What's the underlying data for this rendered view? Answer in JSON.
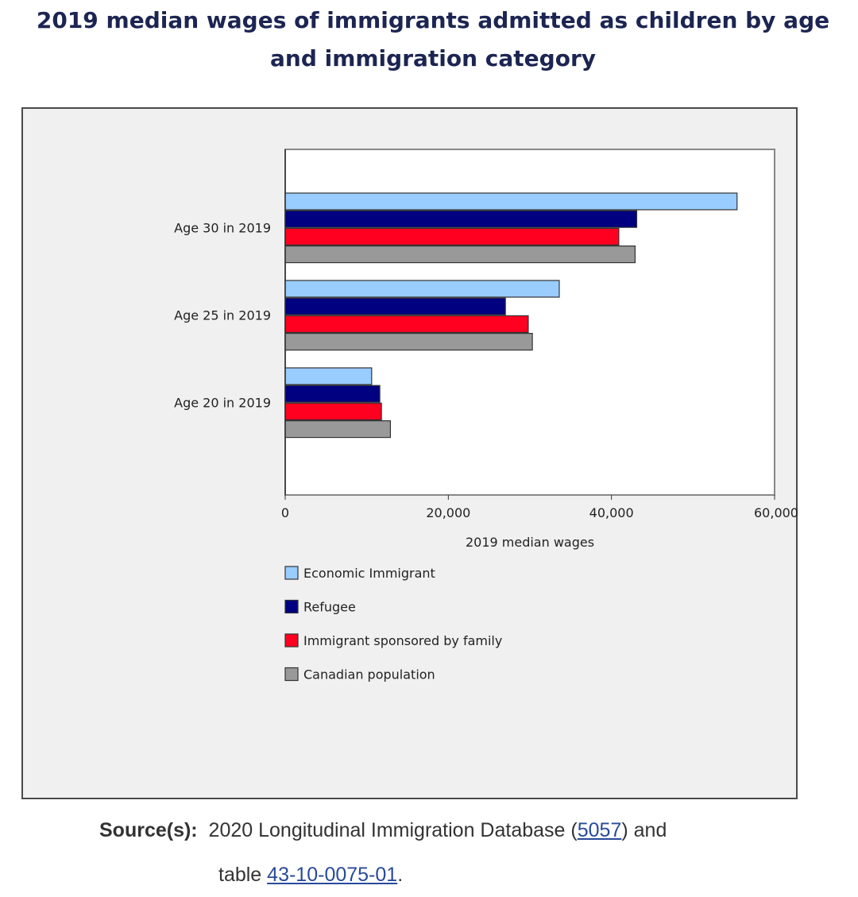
{
  "title": "2019 median wages of immigrants admitted as children by age and immigration category",
  "chart_data": {
    "type": "bar",
    "orientation": "horizontal",
    "categories": [
      "Age 30 in 2019",
      "Age 25 in 2019",
      "Age 20 in 2019"
    ],
    "series": [
      {
        "name": "Economic Immigrant",
        "color": "#99ccff",
        "values": [
          55400,
          33600,
          10600
        ]
      },
      {
        "name": "Refugee",
        "color": "#000080",
        "values": [
          43100,
          27000,
          11600
        ]
      },
      {
        "name": "Immigrant sponsored by family",
        "color": "#ff0020",
        "values": [
          40900,
          29800,
          11800
        ]
      },
      {
        "name": "Canadian population",
        "color": "#999999",
        "values": [
          42900,
          30300,
          12900
        ]
      }
    ],
    "xlabel": "2019 median wages",
    "ylabel": "",
    "xlim": [
      0,
      60000
    ],
    "xticks": [
      0,
      20000,
      40000,
      60000
    ],
    "xtick_labels": [
      "0",
      "20,000",
      "40,000",
      "60,000"
    ],
    "grid": false,
    "legend_position": "bottom"
  },
  "source": {
    "label": "Source(s):",
    "text_before": "2020 Longitudinal Immigration Database (",
    "link1": "5057",
    "text_middle": ") and",
    "text_line2": "table ",
    "link2": "43-10-0075-01",
    "text_end": "."
  }
}
